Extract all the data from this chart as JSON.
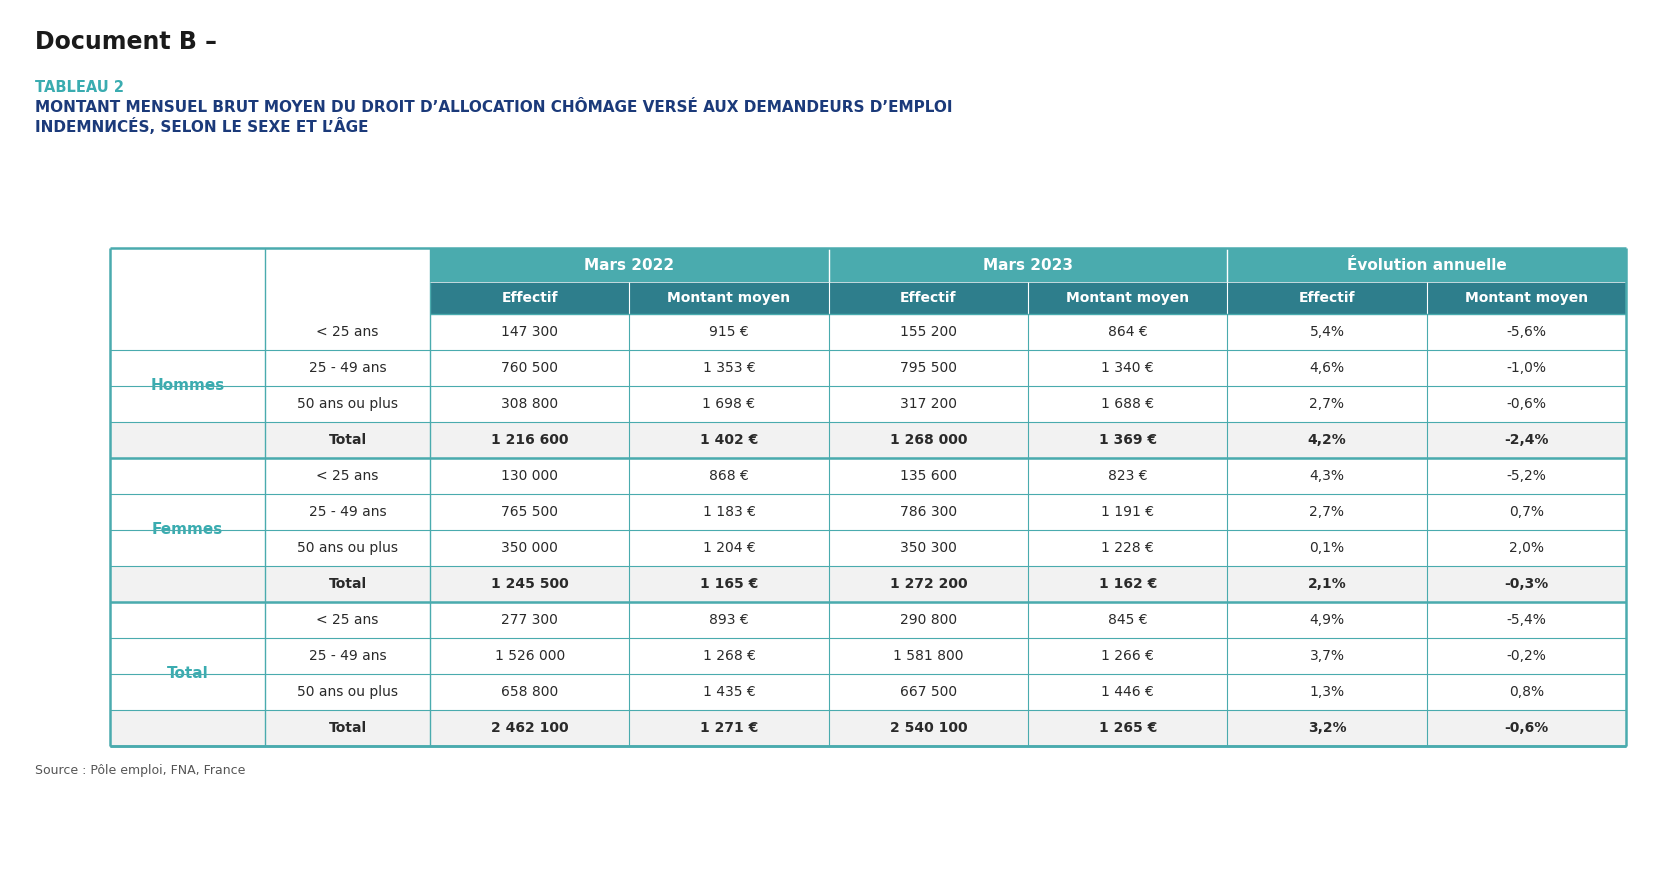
{
  "doc_title": "Document B –",
  "tableau_label": "TABLEAU 2",
  "main_title_line1": "MONTANT MENSUEL BRUT MOYEN DU DROIT D’ALLOCATION CHÔMAGE VERSÉ AUX DEMANDEURS D’EMPLOI",
  "main_title_line2": "INDEMNИСÉS, SELON LE SEXE ET L’ÂGE",
  "main_title": "MONTANT MENSUEL BRUT MOYEN DU DROIT D’ALLOCATION CHÔMAGE VERSÉ AUX DEMANDEURS D’EMPLOI\nINDEMNISÉS, SELON LE SEXE ET L’ÂGE",
  "source": "Source : Pôle emploi, FNA, France",
  "header_group": [
    "Mars 2022",
    "Mars 2023",
    "Évolution annuelle"
  ],
  "header_sub": [
    "Effectif",
    "Montant moyen",
    "Effectif",
    "Montant moyen",
    "Effectif",
    "Montant moyen"
  ],
  "row_groups": [
    {
      "label": "Hommes",
      "rows": [
        [
          "< 25 ans",
          "147 300",
          "915 €",
          "155 200",
          "864 €",
          "5,4%",
          "-5,6%"
        ],
        [
          "25 - 49 ans",
          "760 500",
          "1 353 €",
          "795 500",
          "1 340 €",
          "4,6%",
          "-1,0%"
        ],
        [
          "50 ans ou plus",
          "308 800",
          "1 698 €",
          "317 200",
          "1 688 €",
          "2,7%",
          "-0,6%"
        ],
        [
          "Total",
          "1 216 600",
          "1 402 €",
          "1 268 000",
          "1 369 €",
          "4,2%",
          "-2,4%"
        ]
      ]
    },
    {
      "label": "Femmes",
      "rows": [
        [
          "< 25 ans",
          "130 000",
          "868 €",
          "135 600",
          "823 €",
          "4,3%",
          "-5,2%"
        ],
        [
          "25 - 49 ans",
          "765 500",
          "1 183 €",
          "786 300",
          "1 191 €",
          "2,7%",
          "0,7%"
        ],
        [
          "50 ans ou plus",
          "350 000",
          "1 204 €",
          "350 300",
          "1 228 €",
          "0,1%",
          "2,0%"
        ],
        [
          "Total",
          "1 245 500",
          "1 165 €",
          "1 272 200",
          "1 162 €",
          "2,1%",
          "-0,3%"
        ]
      ]
    },
    {
      "label": "Total",
      "rows": [
        [
          "< 25 ans",
          "277 300",
          "893 €",
          "290 800",
          "845 €",
          "4,9%",
          "-5,4%"
        ],
        [
          "25 - 49 ans",
          "1 526 000",
          "1 268 €",
          "1 581 800",
          "1 266 €",
          "3,7%",
          "-0,2%"
        ],
        [
          "50 ans ou plus",
          "658 800",
          "1 435 €",
          "667 500",
          "1 446 €",
          "1,3%",
          "0,8%"
        ],
        [
          "Total",
          "2 462 100",
          "1 271 €",
          "2 540 100",
          "1 265 €",
          "3,2%",
          "-0,6%"
        ]
      ]
    }
  ],
  "color_header_bg": "#4AABAE",
  "color_header_text": "#ffffff",
  "color_subheader_bg": "#2E7E8C",
  "color_subheader_text": "#ffffff",
  "color_group_label": "#3AACB0",
  "color_tableau_label": "#3AACB0",
  "color_title_text": "#1B3A7A",
  "color_border": "#4AABAE",
  "color_bg_white": "#ffffff",
  "background_color": "#ffffff",
  "doc_title_color": "#1a1a1a",
  "source_color": "#555555",
  "data_text_color": "#2a2a2a",
  "total_row_bold": true
}
